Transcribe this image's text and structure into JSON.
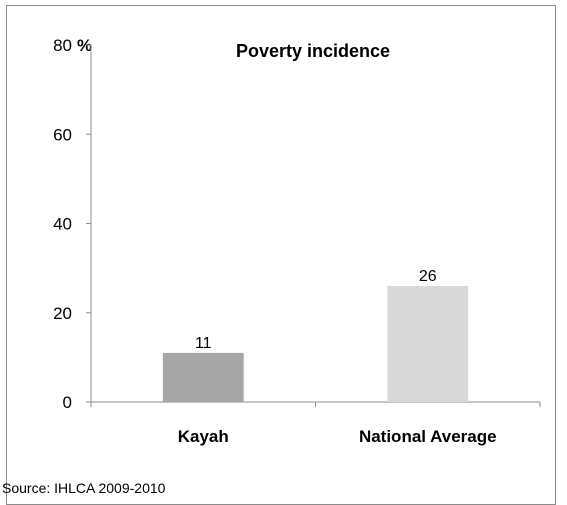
{
  "chart_data": {
    "type": "bar",
    "title": "Poverty incidence",
    "y_unit": "%",
    "categories": [
      "Kayah",
      "National Average"
    ],
    "values": [
      11,
      26
    ],
    "data_labels": [
      "11",
      "26"
    ],
    "ylim": [
      0,
      80
    ],
    "yticks": [
      0,
      20,
      40,
      60,
      80
    ],
    "colors": [
      "#a6a6a6",
      "#d9d9d9"
    ],
    "grid": false,
    "legend": "none",
    "source": "Source: IHLCA 2009-2010"
  }
}
